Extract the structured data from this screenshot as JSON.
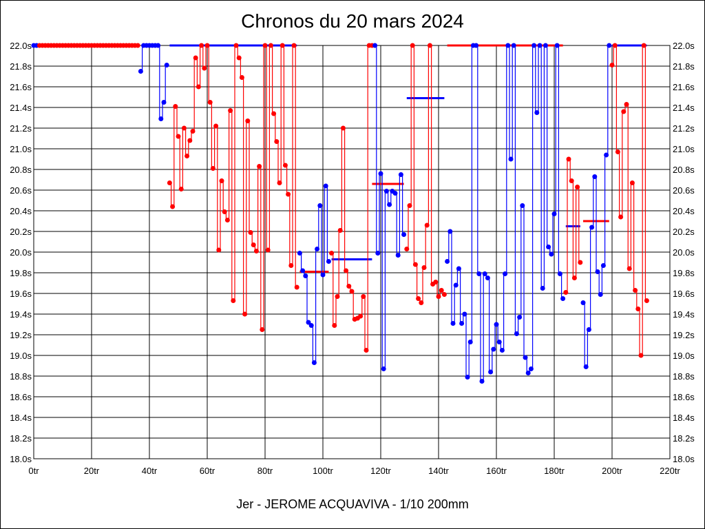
{
  "chart_data": {
    "type": "line",
    "title": "Chronos du 20 mars 2024",
    "xlabel": "Jer - JEROME ACQUAVIVA - 1/10 200mm",
    "ylabel": "",
    "xlim": [
      0,
      220
    ],
    "ylim": [
      18.0,
      22.0
    ],
    "x_ticks": [
      0,
      20,
      40,
      60,
      80,
      100,
      120,
      140,
      160,
      180,
      200,
      220
    ],
    "x_tick_suffix": "tr",
    "y_ticks": [
      18.0,
      18.2,
      18.4,
      18.6,
      18.8,
      19.0,
      19.2,
      19.4,
      19.6,
      19.8,
      20.0,
      20.2,
      20.4,
      20.6,
      20.8,
      21.0,
      21.2,
      21.4,
      21.6,
      21.8,
      22.0
    ],
    "y_tick_suffix": "s",
    "grid": true,
    "colors": {
      "red": "#ff0000",
      "blue": "#0000ff"
    },
    "segments": [
      {
        "color": "blue",
        "start": 0,
        "values": [
          22,
          22
        ]
      },
      {
        "color": "red",
        "start": 2,
        "values": [
          22,
          22,
          22,
          22,
          22,
          22,
          22,
          22,
          22,
          22,
          22,
          22,
          22,
          22,
          22,
          22,
          22,
          22,
          22,
          22,
          22,
          22,
          22,
          22,
          22,
          22,
          22,
          22,
          22,
          22,
          22,
          22,
          22,
          22,
          22
        ]
      },
      {
        "color": "blue",
        "start": 37,
        "values": [
          21.75,
          22,
          22,
          22,
          22,
          22,
          22,
          21.29,
          21.45,
          21.81
        ]
      },
      {
        "color": "red",
        "start": 47,
        "values": [
          20.67,
          20.44,
          21.41,
          21.12,
          20.61,
          21.2,
          20.93,
          21.08,
          21.17,
          21.88,
          21.6,
          22,
          21.78,
          22,
          21.45,
          20.81,
          21.22,
          20.02,
          20.69,
          20.39,
          20.31,
          21.37,
          19.53,
          22,
          21.88,
          21.69,
          19.4,
          21.27,
          20.19,
          20.07,
          20.01,
          20.83,
          19.25,
          22,
          20.02,
          22,
          21.34,
          21.07,
          20.67,
          22,
          20.84,
          20.56,
          19.87,
          22,
          19.66
        ]
      },
      {
        "color": "blue",
        "start": 92,
        "values": [
          19.99,
          19.82,
          19.77,
          19.32,
          19.29,
          18.93,
          20.03,
          20.45,
          19.78,
          20.64,
          19.91
        ]
      },
      {
        "color": "red",
        "start": 103,
        "values": [
          19.99,
          19.29,
          19.57,
          20.21,
          21.2,
          19.82,
          19.67,
          19.62,
          19.35,
          19.36,
          19.38,
          19.57,
          19.05,
          22,
          22
        ]
      },
      {
        "color": "blue",
        "start": 118,
        "values": [
          22,
          19.99,
          20.76,
          18.87,
          20.59,
          20.46,
          20.59,
          20.57,
          19.97,
          20.75,
          20.17
        ]
      },
      {
        "color": "red",
        "start": 129,
        "values": [
          20.03,
          20.45,
          22,
          19.88,
          19.55,
          19.51,
          19.85,
          20.26,
          22,
          19.69,
          19.71,
          19.57,
          19.63,
          19.59
        ]
      },
      {
        "color": "blue",
        "start": 143,
        "values": [
          19.91,
          20.2,
          19.31,
          19.68,
          19.84,
          19.31,
          19.4,
          18.79,
          19.13,
          22,
          22,
          19.79,
          18.75,
          19.79,
          19.75,
          18.84,
          19.06,
          19.3,
          19.13,
          19.05,
          19.79,
          22,
          20.9,
          22,
          19.21,
          19.37,
          20.45,
          18.98,
          18.83,
          18.87,
          22,
          21.35,
          22,
          19.65,
          22,
          20.05,
          19.98,
          20.37,
          22,
          19.79,
          19.55
        ]
      },
      {
        "color": "red",
        "start": 184,
        "values": [
          19.61,
          20.9,
          20.69,
          19.75,
          20.63,
          19.9
        ]
      },
      {
        "color": "blue",
        "start": 190,
        "values": [
          19.51,
          18.89,
          19.25,
          20.24,
          20.73,
          19.81,
          19.59,
          19.87,
          20.94,
          22
        ]
      },
      {
        "color": "red",
        "start": 200,
        "values": [
          21.81,
          22,
          20.97,
          20.34,
          21.36,
          21.43,
          19.84,
          20.67,
          19.63,
          19.45,
          19.0,
          22,
          19.53
        ]
      }
    ],
    "avg_lines": [
      {
        "color": "blue",
        "from": 47,
        "to": 91,
        "value": 22.0
      },
      {
        "color": "red",
        "from": 92,
        "to": 102,
        "value": 19.81
      },
      {
        "color": "blue",
        "from": 103,
        "to": 117,
        "value": 19.93
      },
      {
        "color": "red",
        "from": 117,
        "to": 128,
        "value": 20.66
      },
      {
        "color": "blue",
        "from": 129,
        "to": 142,
        "value": 21.49
      },
      {
        "color": "red",
        "from": 143,
        "to": 183,
        "value": 22.0
      },
      {
        "color": "blue",
        "from": 184,
        "to": 189,
        "value": 20.25
      },
      {
        "color": "red",
        "from": 190,
        "to": 199,
        "value": 20.3
      },
      {
        "color": "blue",
        "from": 200,
        "to": 212,
        "value": 22.0
      }
    ]
  }
}
